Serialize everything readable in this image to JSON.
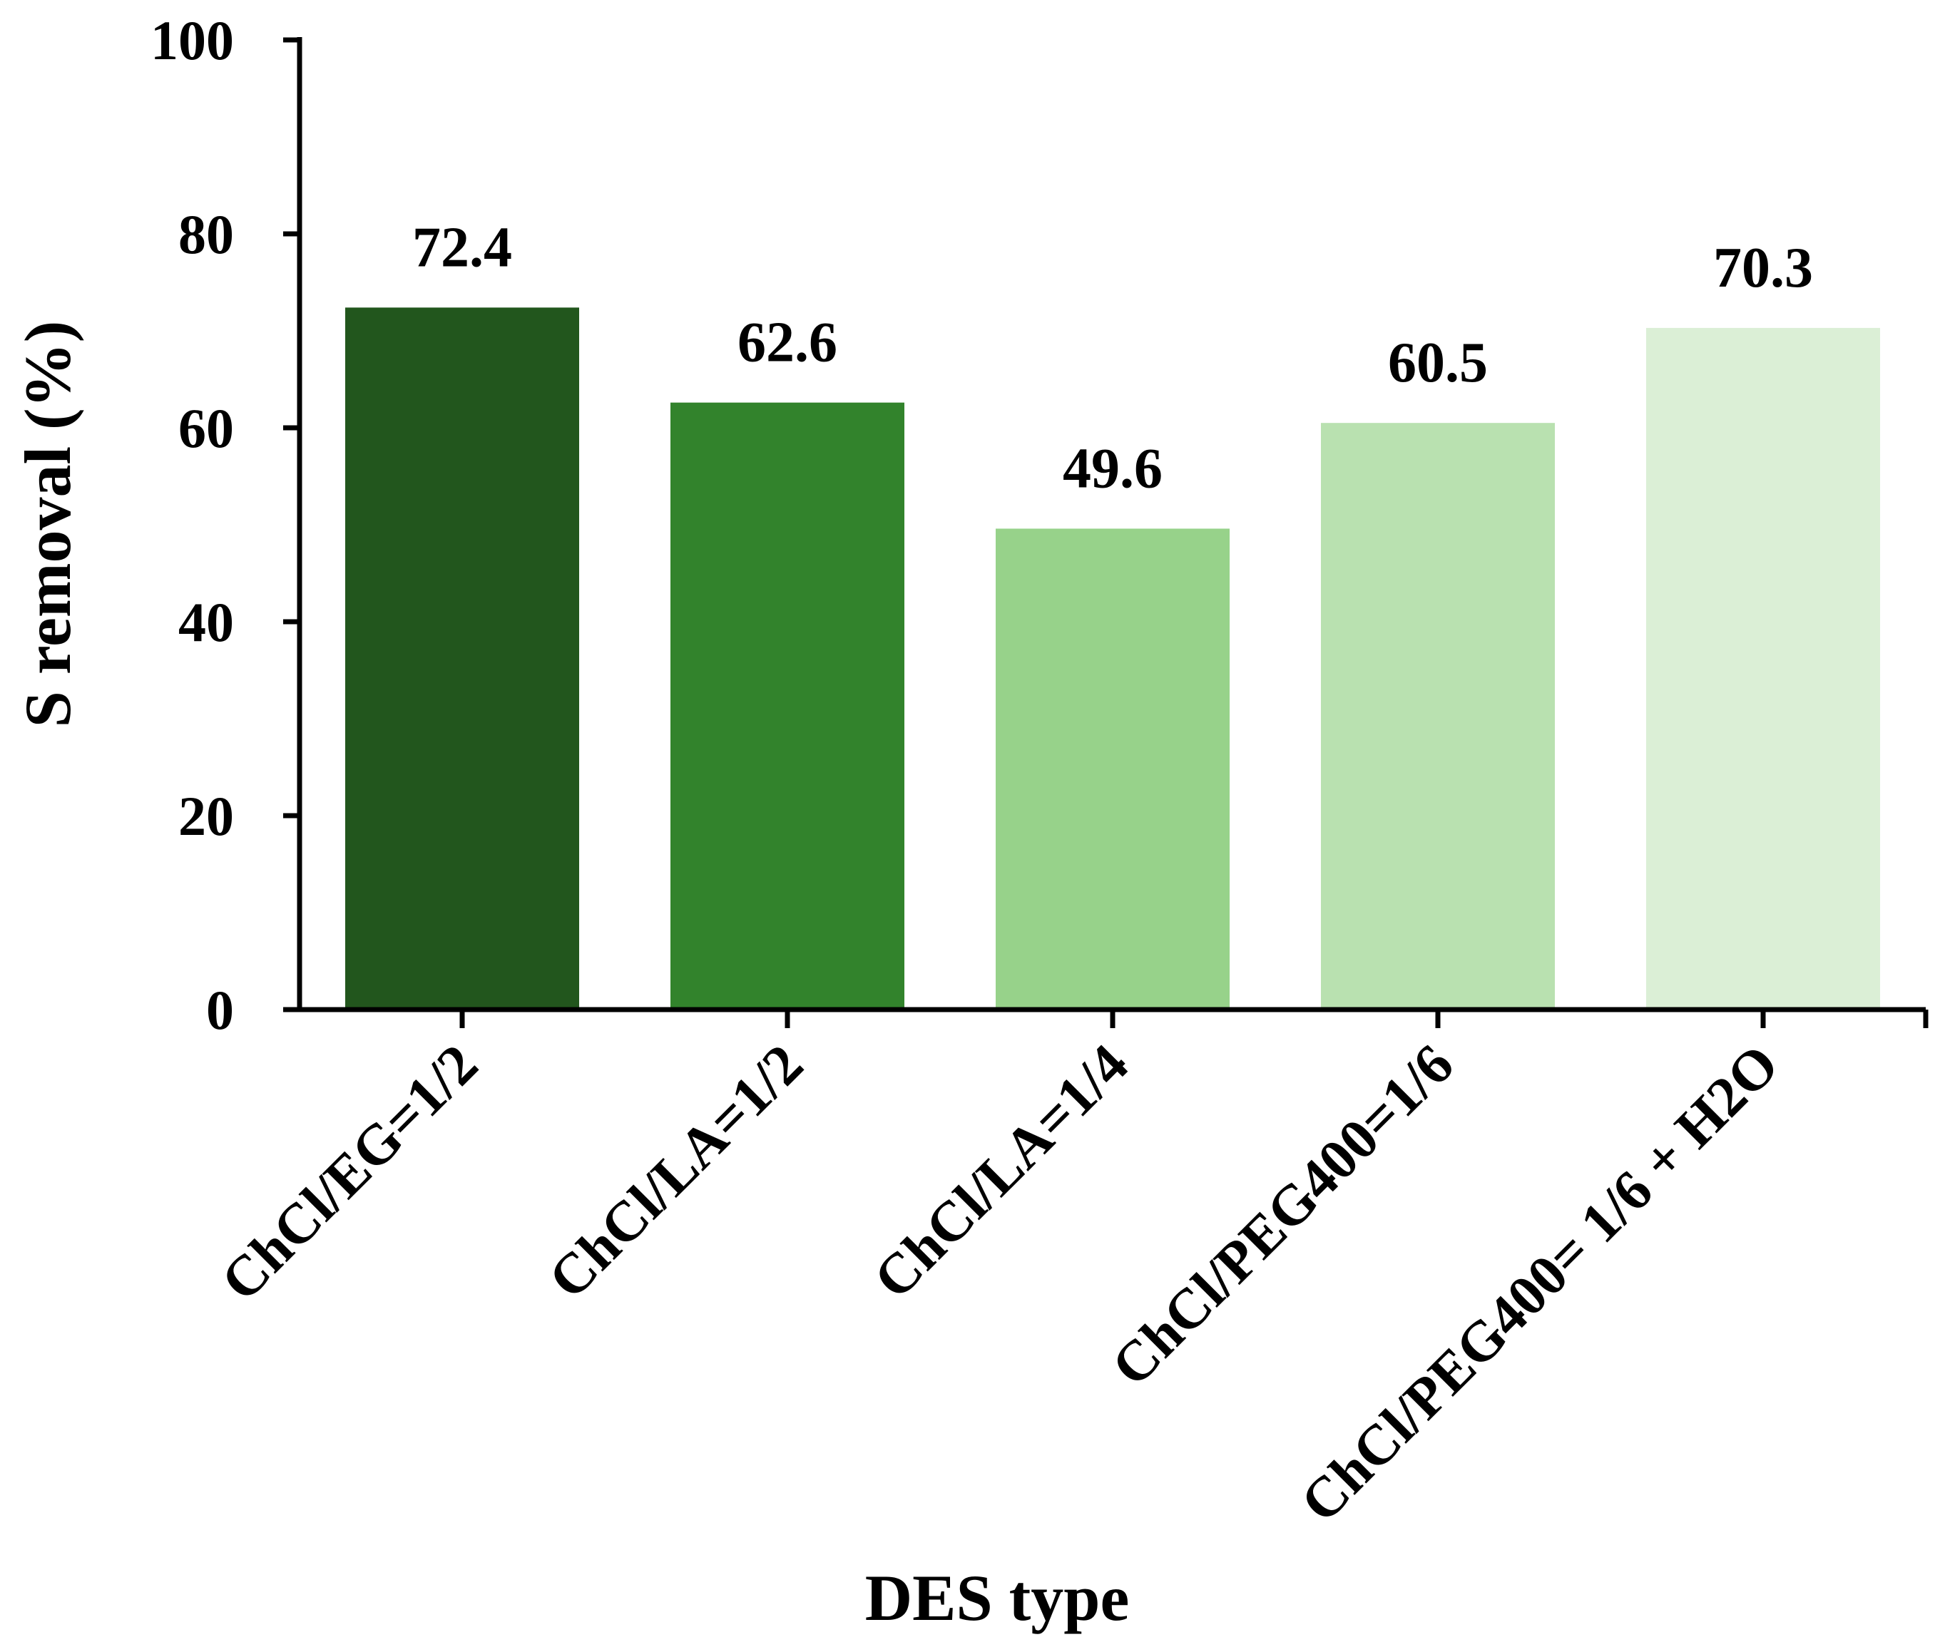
{
  "chart_data": {
    "type": "bar",
    "title": "",
    "xlabel": "DES type",
    "ylabel": "S removal (%)",
    "ylim": [
      0,
      100
    ],
    "yticks": [
      0,
      20,
      40,
      60,
      80,
      100
    ],
    "grid": false,
    "legend": "none",
    "categories": [
      "ChCl/EG=1/2",
      "ChCl/LA=1/2",
      "ChCl/LA=1/4",
      "ChCl/PEG400=1/6",
      "ChCl/PEG400= 1/6 + H2O"
    ],
    "values": [
      72.4,
      62.6,
      49.6,
      60.5,
      70.3
    ],
    "data_labels": [
      "72.4",
      "62.6",
      "49.6",
      "60.5",
      "70.3"
    ],
    "colors": [
      "#22561d",
      "#32832c",
      "#97d28a",
      "#b9e1b0",
      "#dbefd6"
    ]
  }
}
